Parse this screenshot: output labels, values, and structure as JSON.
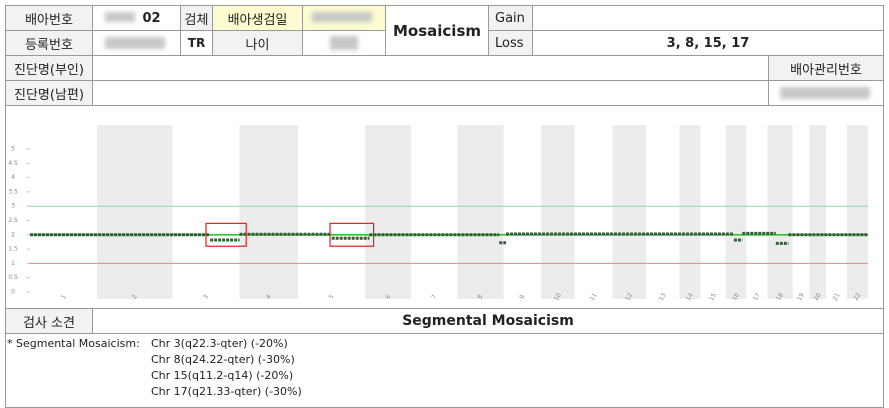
{
  "report": {
    "embryo_no_label": "배아번호",
    "embryo_no": "02",
    "specimen_label": "검체",
    "biopsy_date_label": "배아생검일",
    "result": "Mosaicism",
    "gain_label": "Gain",
    "reg_no_label": "등록번호",
    "specimen": "TR",
    "age_label": "나이",
    "loss_label": "Loss",
    "loss": "3, 8, 15, 17",
    "dx_wife_label": "진단명(부인)",
    "embryo_mgmt_label": "배아관리번호",
    "dx_husband_label": "진단명(남편)",
    "finding_label": "검사 소견",
    "finding": "Segmental Mosaicism",
    "notes": [
      "* Segmental Mosaicism:",
      "Chr 3(q22.3-qter) (-20%)",
      "Chr 8(q24.22-qter) (-30%)",
      "Chr 15(q11.2-q14) (-20%)",
      "Chr 17(q21.33-qter) (-30%)"
    ]
  },
  "chart_data": {
    "type": "segments",
    "xlim": [
      0,
      100
    ],
    "ylim": [
      0,
      5
    ],
    "yticks": [
      0,
      0.5,
      1,
      1.5,
      2,
      2.5,
      3,
      3.5,
      4,
      4.5,
      5
    ],
    "chromosomes": [
      "1",
      "2",
      "3",
      "4",
      "5",
      "6",
      "7",
      "8",
      "9",
      "10",
      "11",
      "12",
      "13",
      "14",
      "15",
      "16",
      "17",
      "18",
      "19",
      "20",
      "21",
      "22"
    ],
    "chromosome_bounds": [
      0,
      8,
      17,
      25,
      32,
      40,
      45.5,
      51,
      56.5,
      61,
      65,
      69.5,
      73.5,
      77.5,
      80,
      83,
      85.5,
      88,
      91,
      93,
      95,
      97.5,
      100
    ],
    "reference_lines": [
      {
        "value": 3,
        "color": "#8fd3b0"
      },
      {
        "value": 2,
        "color": "#22cc22"
      },
      {
        "value": 1,
        "color": "#d98a8a"
      }
    ],
    "segment_color": "#2f5f35",
    "segments": [
      {
        "x": [
          0,
          21.5
        ],
        "value": 2.0
      },
      {
        "x": [
          21.5,
          25
        ],
        "value": 1.82
      },
      {
        "x": [
          25,
          36
        ],
        "value": 2.02
      },
      {
        "x": [
          36,
          40.5
        ],
        "value": 1.88
      },
      {
        "x": [
          40.5,
          56
        ],
        "value": 2.0
      },
      {
        "x": [
          56,
          56.8
        ],
        "value": 1.72
      },
      {
        "x": [
          56.8,
          84
        ],
        "value": 2.03
      },
      {
        "x": [
          84,
          85
        ],
        "value": 1.82
      },
      {
        "x": [
          85,
          89
        ],
        "value": 2.05
      },
      {
        "x": [
          89,
          90.5
        ],
        "value": 1.7
      },
      {
        "x": [
          90.5,
          100
        ],
        "value": 2.0
      }
    ],
    "highlight_color": "#e02020",
    "highlights": [
      {
        "x": [
          21,
          25.8
        ],
        "y": [
          1.6,
          2.4
        ]
      },
      {
        "x": [
          35.8,
          41
        ],
        "y": [
          1.6,
          2.4
        ]
      }
    ]
  }
}
